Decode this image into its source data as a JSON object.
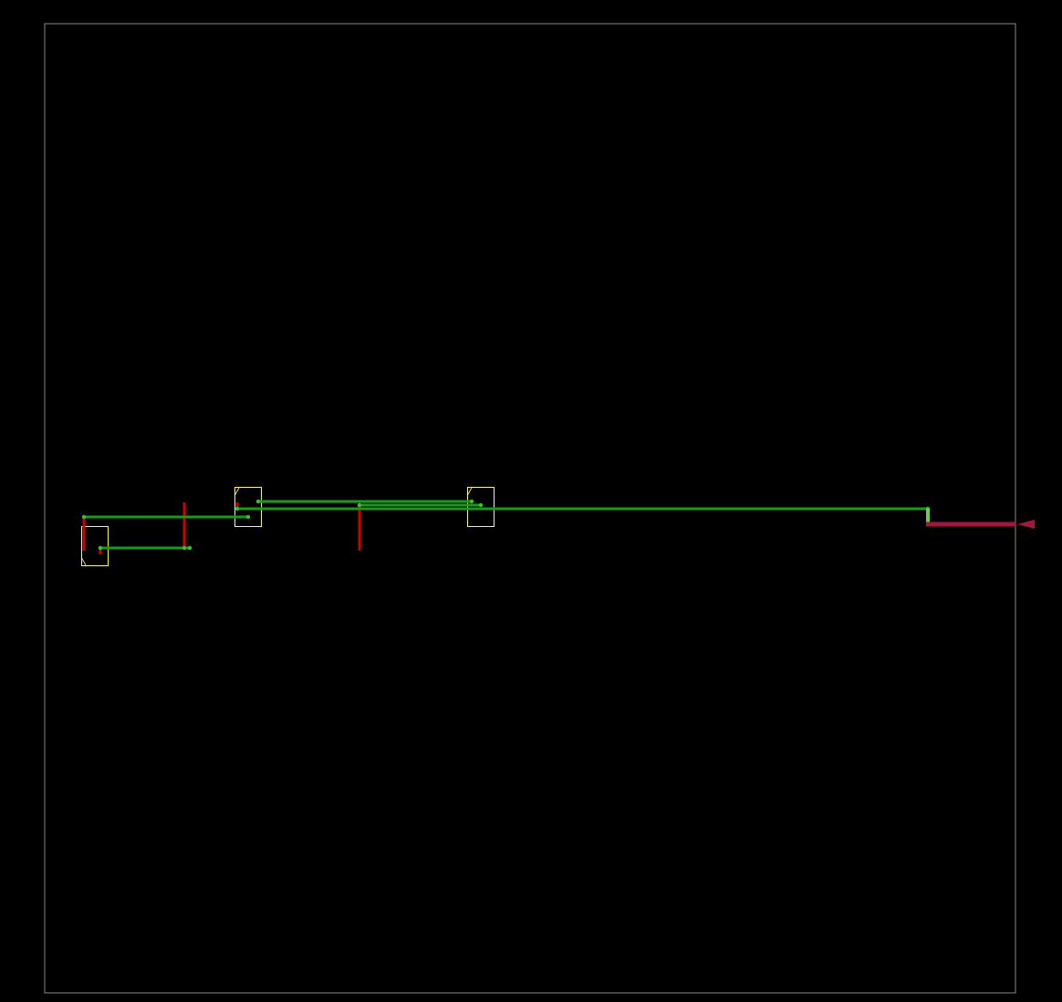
{
  "viewer": {
    "background_color": "#000000",
    "die_boundary_color": "#8a8a8a",
    "cell_outline_color": "#ffff33",
    "route_color_horizontal": "#1a9a1a",
    "route_color_vertical": "#cc0000",
    "via_color": "#6fcf3f",
    "pin_color": "#a01840",
    "port_marker_icon": "triangle-left-icon"
  },
  "cells": [
    {
      "id": "cell-1"
    },
    {
      "id": "cell-2"
    },
    {
      "id": "cell-3"
    }
  ],
  "nets": [
    {
      "id": "net-1"
    },
    {
      "id": "net-2"
    },
    {
      "id": "net-3"
    },
    {
      "id": "net-4"
    },
    {
      "id": "net-5"
    }
  ],
  "io_pin": {
    "id": "output-pin"
  }
}
